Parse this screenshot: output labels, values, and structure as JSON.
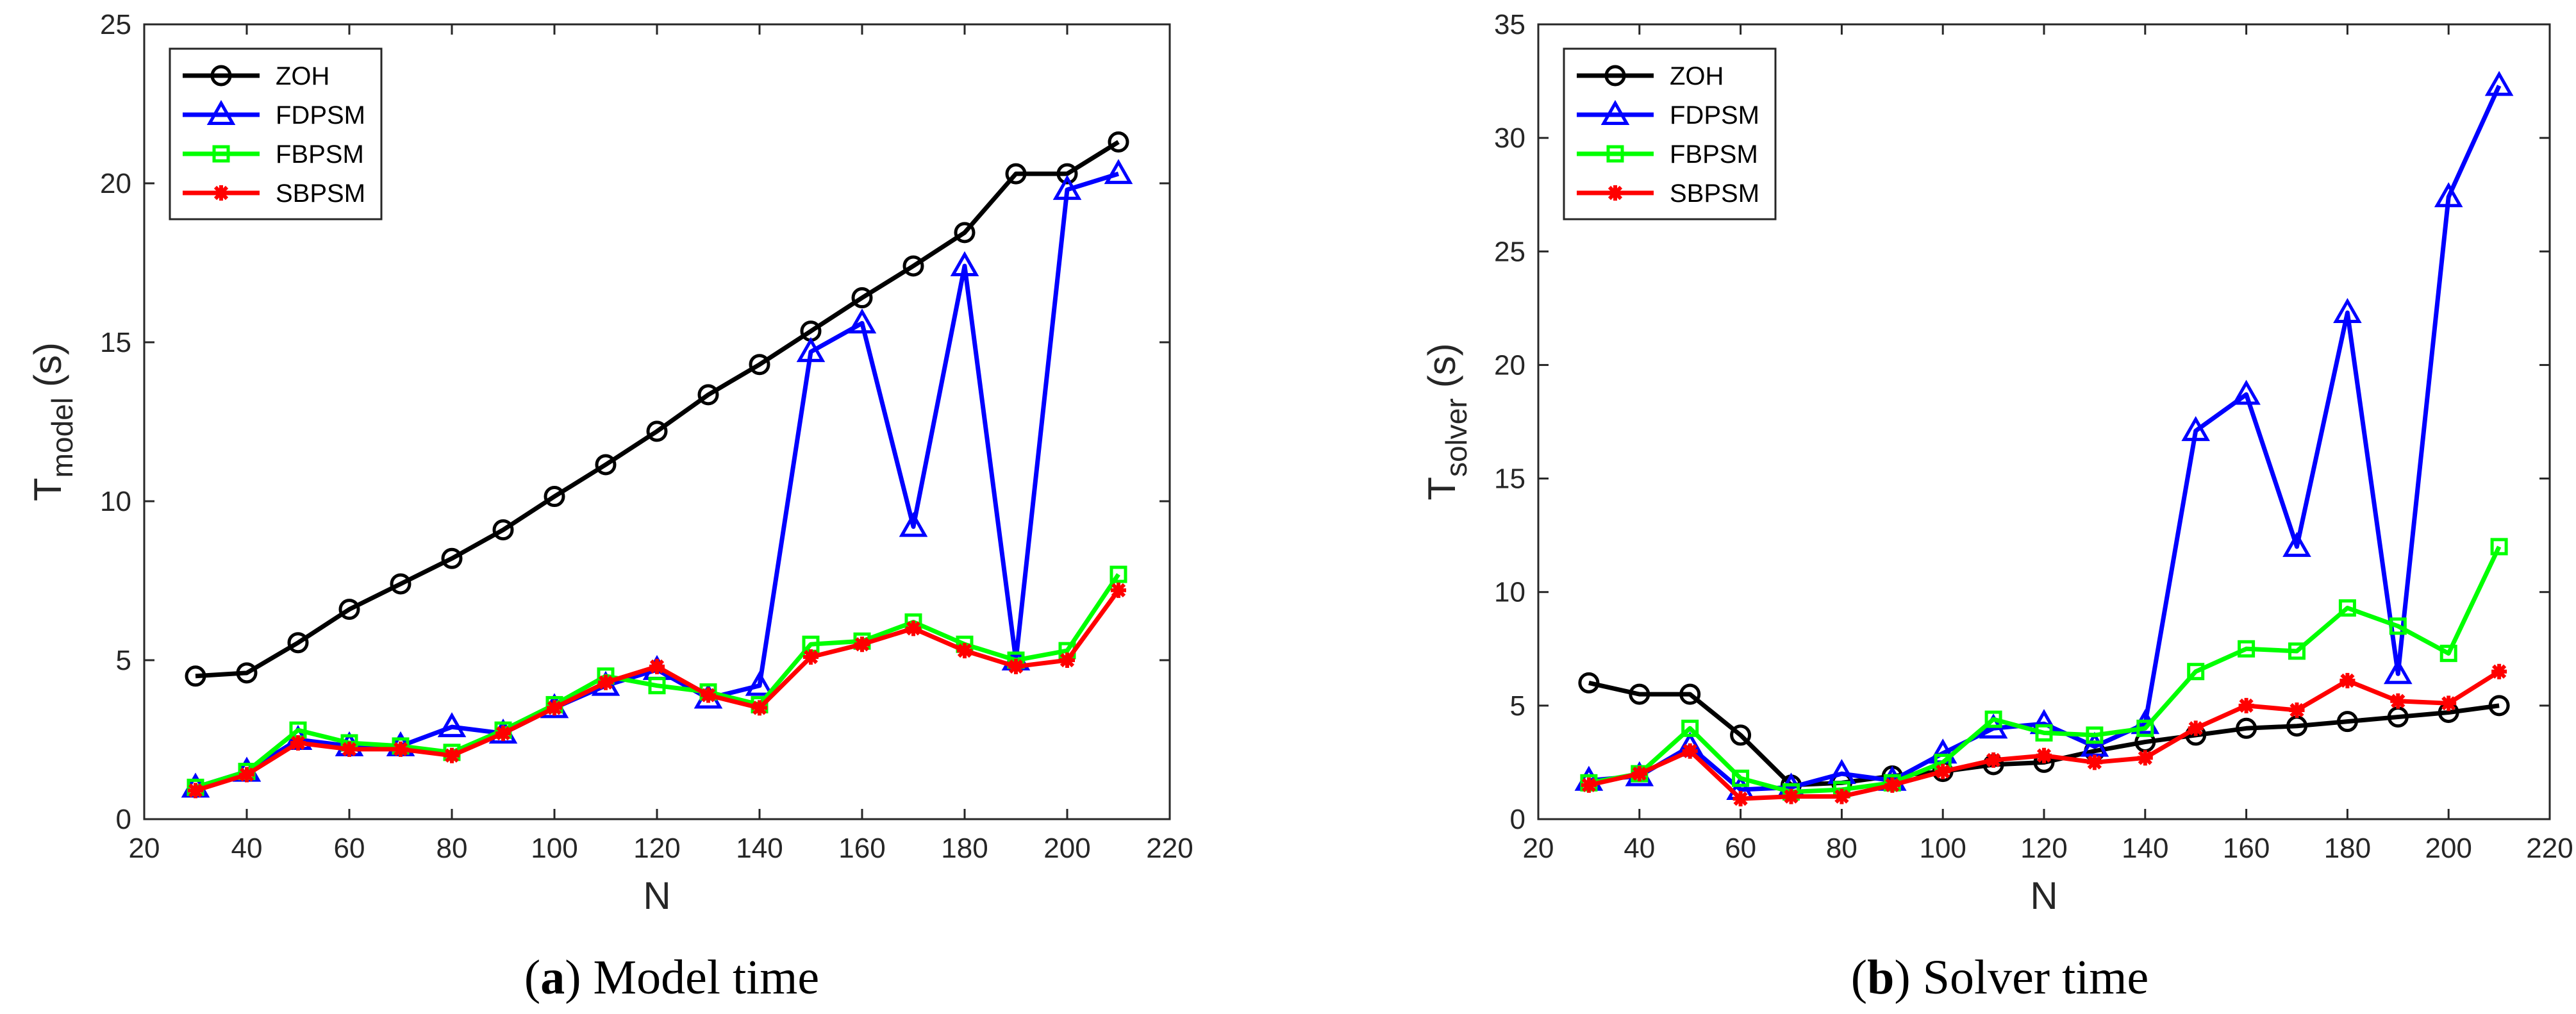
{
  "chart_data": [
    {
      "type": "line",
      "caption_letter": "a",
      "caption_text": "Model time",
      "xlabel": "N",
      "ylabel_main": "T",
      "ylabel_sub": "model",
      "ylabel_unit": "(s)",
      "xlim": [
        20,
        220
      ],
      "ylim": [
        0,
        25
      ],
      "xticks": [
        20,
        40,
        60,
        80,
        100,
        120,
        140,
        160,
        180,
        200,
        220
      ],
      "yticks": [
        0,
        5,
        10,
        15,
        20,
        25
      ],
      "legend_position": "top-left",
      "x": [
        30,
        40,
        50,
        60,
        70,
        80,
        90,
        100,
        110,
        120,
        130,
        140,
        150,
        160,
        170,
        180,
        190,
        200,
        210
      ],
      "series": [
        {
          "name": "ZOH",
          "color": "#000000",
          "marker": "circle",
          "values": [
            4.5,
            4.6,
            5.55,
            6.6,
            7.4,
            8.2,
            9.1,
            10.15,
            11.15,
            12.2,
            13.35,
            14.3,
            15.35,
            16.4,
            17.4,
            18.45,
            20.3,
            20.3,
            21.3
          ]
        },
        {
          "name": "FDPSM",
          "color": "#0000FF",
          "marker": "triangle",
          "values": [
            1.0,
            1.5,
            2.5,
            2.3,
            2.3,
            2.9,
            2.7,
            3.5,
            4.2,
            4.7,
            3.8,
            4.2,
            14.7,
            15.6,
            9.2,
            17.4,
            5.0,
            19.8,
            20.3
          ]
        },
        {
          "name": "FBPSM",
          "color": "#00FF00",
          "marker": "square",
          "values": [
            1.0,
            1.5,
            2.8,
            2.4,
            2.3,
            2.1,
            2.8,
            3.6,
            4.5,
            4.2,
            4.0,
            3.6,
            5.5,
            5.6,
            6.2,
            5.5,
            5.0,
            5.3,
            7.7
          ]
        },
        {
          "name": "SBPSM",
          "color": "#FF0000",
          "marker": "asterisk",
          "values": [
            0.9,
            1.4,
            2.4,
            2.2,
            2.2,
            2.0,
            2.7,
            3.5,
            4.3,
            4.8,
            3.9,
            3.5,
            5.1,
            5.5,
            6.0,
            5.3,
            4.8,
            5.0,
            7.2
          ]
        }
      ]
    },
    {
      "type": "line",
      "caption_letter": "b",
      "caption_text": "Solver time",
      "xlabel": "N",
      "ylabel_main": "T",
      "ylabel_sub": "solver",
      "ylabel_unit": "(s)",
      "xlim": [
        20,
        220
      ],
      "ylim": [
        0,
        35
      ],
      "xticks": [
        20,
        40,
        60,
        80,
        100,
        120,
        140,
        160,
        180,
        200,
        220
      ],
      "yticks": [
        0,
        5,
        10,
        15,
        20,
        25,
        30,
        35
      ],
      "legend_position": "top-left",
      "x": [
        30,
        40,
        50,
        60,
        70,
        80,
        90,
        100,
        110,
        120,
        130,
        140,
        150,
        160,
        170,
        180,
        190,
        200,
        210
      ],
      "series": [
        {
          "name": "ZOH",
          "color": "#000000",
          "marker": "circle",
          "values": [
            6.0,
            5.5,
            5.5,
            3.7,
            1.5,
            1.6,
            1.9,
            2.1,
            2.4,
            2.5,
            3.0,
            3.4,
            3.7,
            4.0,
            4.1,
            4.3,
            4.5,
            4.7,
            5.0
          ]
        },
        {
          "name": "FDPSM",
          "color": "#0000FF",
          "marker": "triangle",
          "values": [
            1.7,
            1.9,
            3.2,
            1.3,
            1.4,
            2.0,
            1.7,
            2.9,
            4.0,
            4.2,
            3.2,
            4.2,
            17.1,
            18.7,
            12.0,
            22.3,
            6.4,
            27.4,
            32.3
          ]
        },
        {
          "name": "FBPSM",
          "color": "#00FF00",
          "marker": "square",
          "values": [
            1.6,
            2.0,
            4.0,
            1.8,
            1.2,
            1.3,
            1.6,
            2.5,
            4.4,
            3.8,
            3.7,
            4.0,
            6.5,
            7.5,
            7.4,
            9.3,
            8.5,
            7.3,
            12.0
          ]
        },
        {
          "name": "SBPSM",
          "color": "#FF0000",
          "marker": "asterisk",
          "values": [
            1.5,
            2.0,
            3.0,
            0.9,
            1.0,
            1.0,
            1.5,
            2.1,
            2.6,
            2.8,
            2.5,
            2.7,
            4.0,
            5.0,
            4.8,
            6.1,
            5.2,
            5.1,
            6.5
          ]
        }
      ]
    }
  ]
}
